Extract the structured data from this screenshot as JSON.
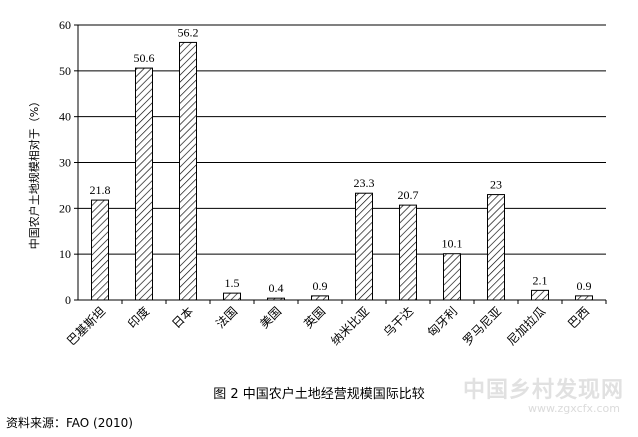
{
  "chart_data": {
    "type": "bar",
    "title": "",
    "ylabel": "中国农户土地规模相对于（%）",
    "xlabel": "",
    "ylim": [
      0,
      60
    ],
    "yticks": [
      0,
      10,
      20,
      30,
      40,
      50,
      60
    ],
    "categories": [
      "巴基斯坦",
      "印度",
      "日本",
      "法国",
      "美国",
      "英国",
      "纳米比亚",
      "乌干达",
      "匈牙利",
      "罗马尼亚",
      "尼加拉瓜",
      "巴西"
    ],
    "values": [
      21.8,
      50.6,
      56.2,
      1.5,
      0.4,
      0.9,
      23.3,
      20.7,
      10.1,
      23,
      2.1,
      0.9
    ],
    "value_labels": [
      "21.8",
      "50.6",
      "56.2",
      "1.5",
      "0.4",
      "0.9",
      "23.3",
      "20.7",
      "10.1",
      "23",
      "2.1",
      "0.9"
    ],
    "grid": true,
    "legend": "none",
    "bar_fill": "hatched"
  },
  "caption": "图 2  中国农户土地经营规模国际比较",
  "source": "资料来源：FAO (2010)",
  "watermark": {
    "text": "中国乡村发现网",
    "url": "www.zgxcfx.com"
  }
}
